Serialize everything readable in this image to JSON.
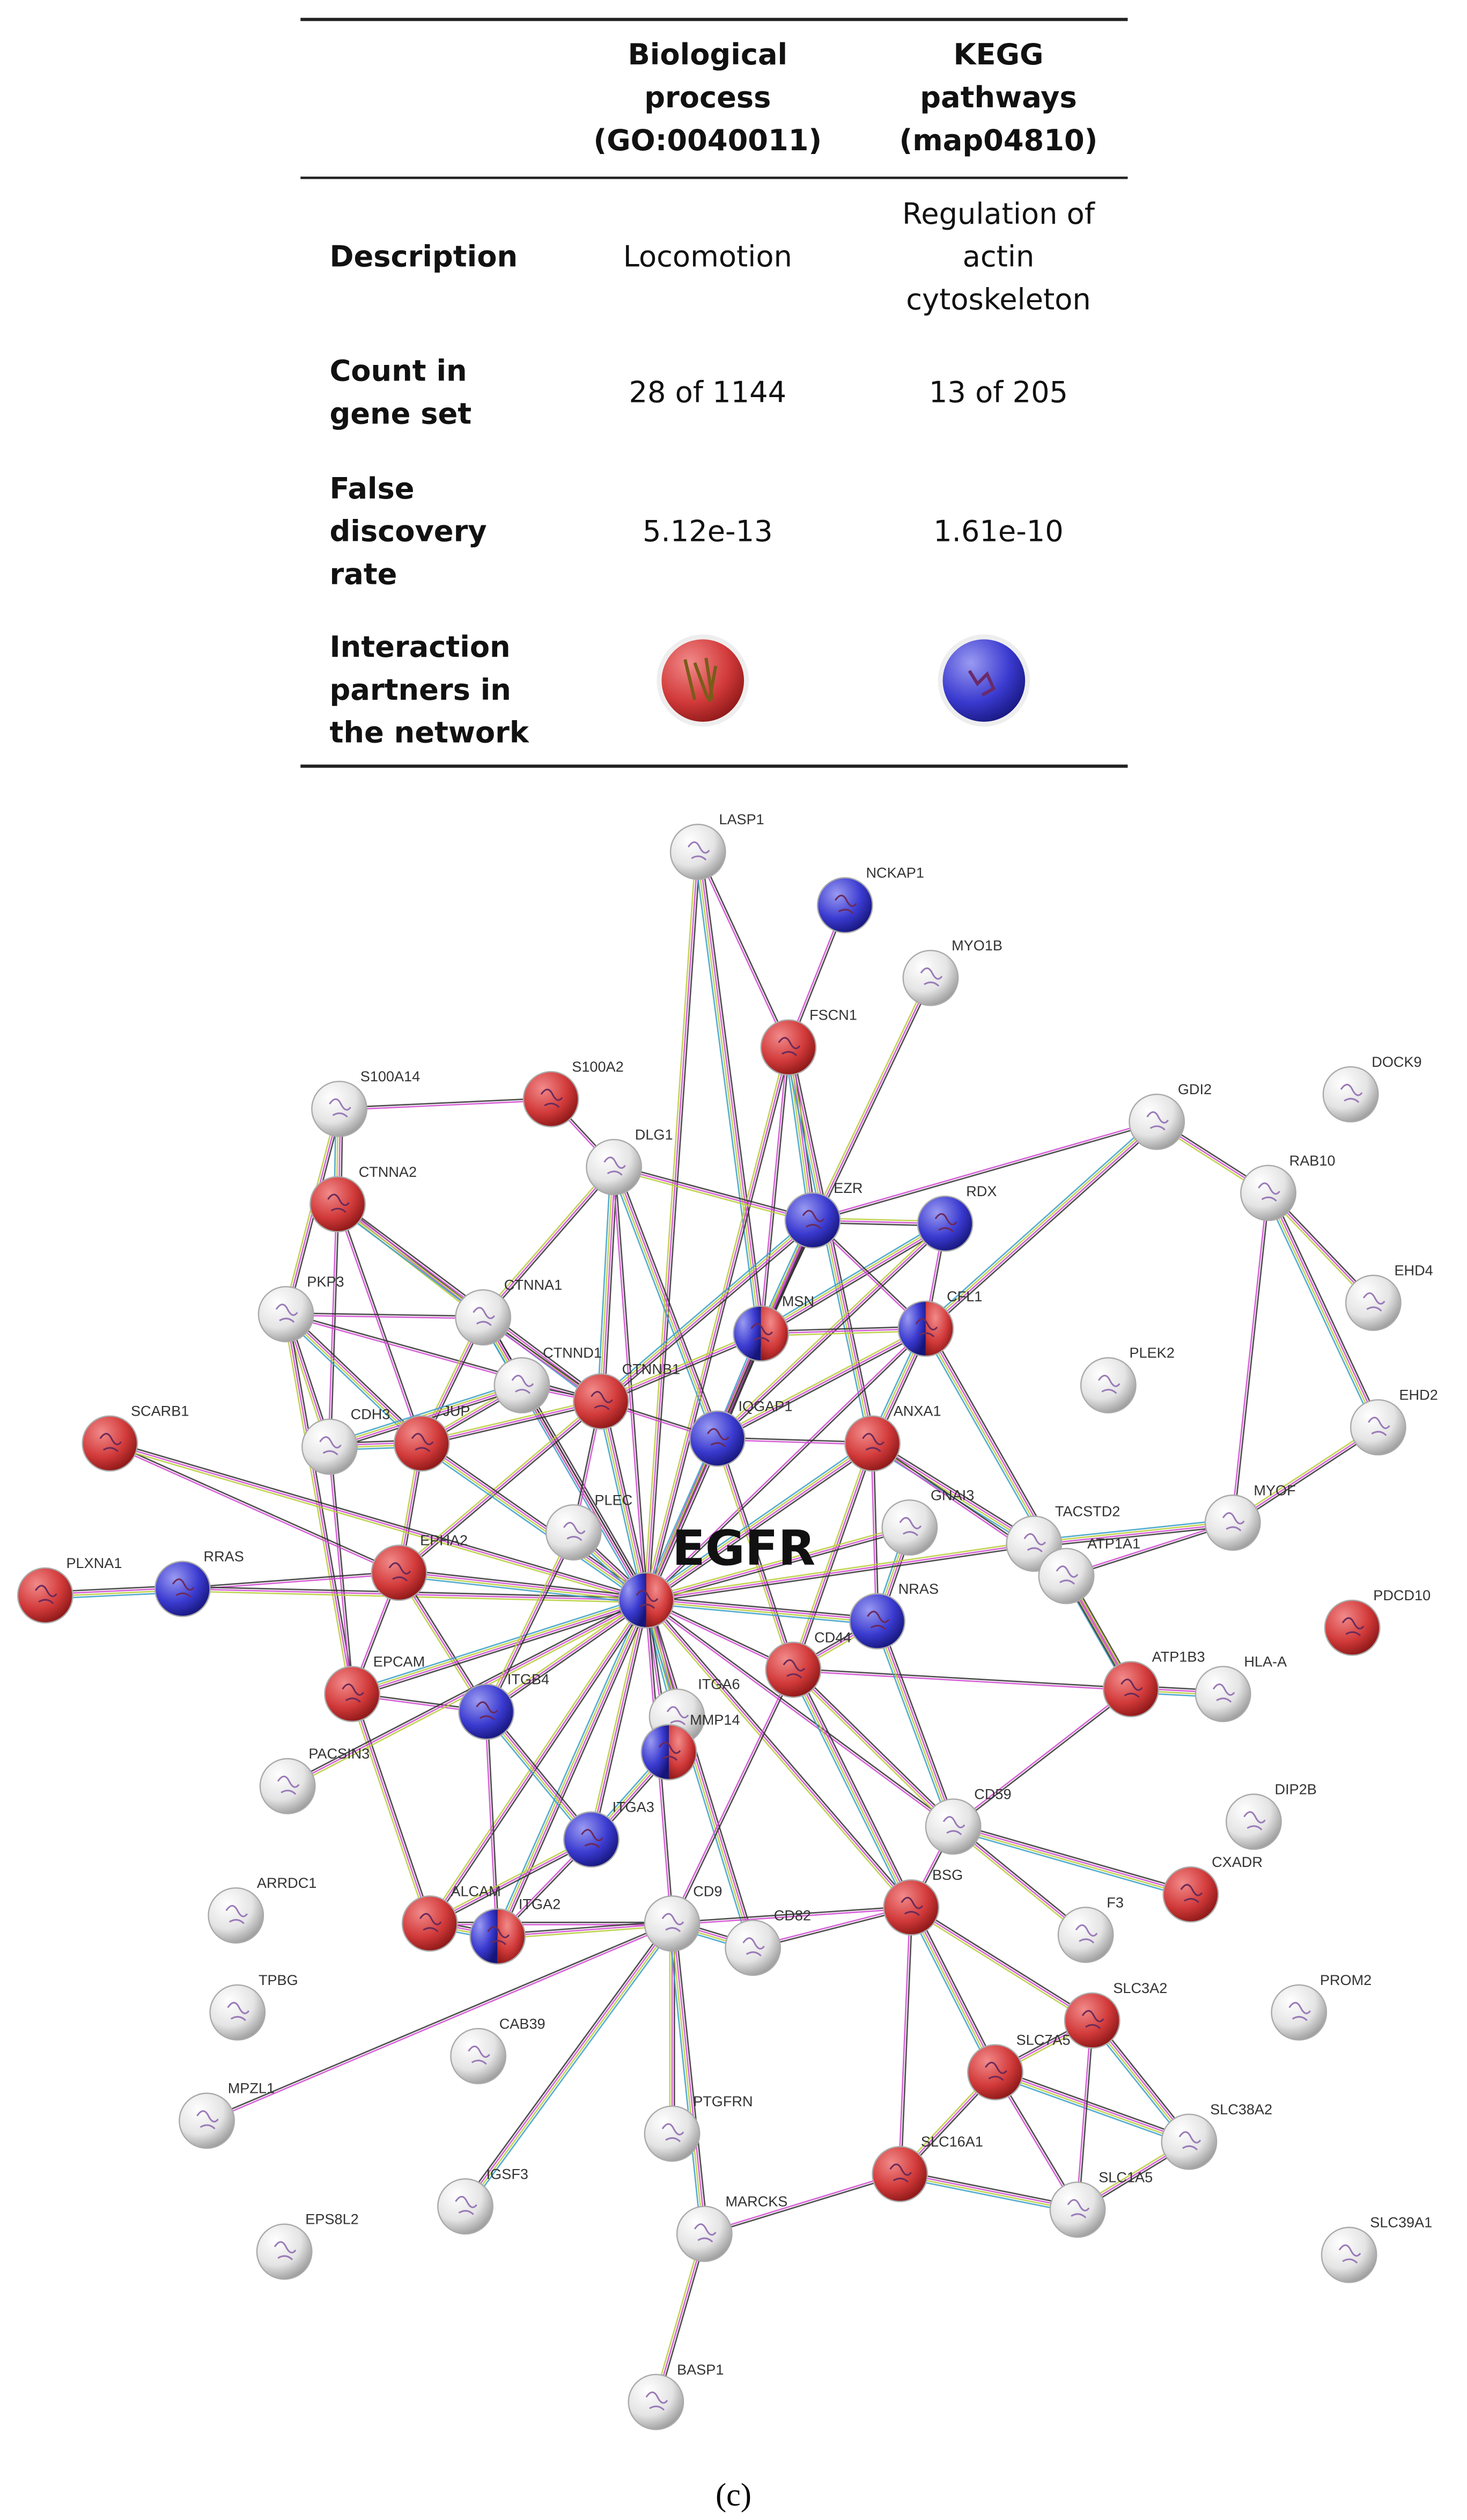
{
  "table": {
    "header": [
      [
        "Biological",
        "process",
        "(GO:0040011)"
      ],
      [
        "KEGG",
        "pathways",
        "(map04810)"
      ]
    ],
    "rows": [
      {
        "label": [
          "Description"
        ],
        "cells": [
          [
            "Locomotion"
          ],
          [
            "Regulation of",
            "actin",
            "cytoskeleton"
          ]
        ]
      },
      {
        "label": [
          "Count in",
          "gene set"
        ],
        "cells": [
          [
            "28 of 1144"
          ],
          [
            "13 of 205"
          ]
        ]
      },
      {
        "label": [
          "False",
          "discovery",
          "rate"
        ],
        "cells": [
          [
            "5.12e-13"
          ],
          [
            "1.61e-10"
          ]
        ]
      },
      {
        "label": [
          "Interaction",
          "partners in",
          "the network"
        ],
        "cells": [
          [],
          []
        ]
      }
    ]
  },
  "network": {
    "nodes": [
      {
        "label": "LASP1",
        "color": "white"
      },
      {
        "label": "NCKAP1",
        "color": "blue"
      },
      {
        "label": "MYO1B",
        "color": "white"
      },
      {
        "label": "FSCN1",
        "color": "red"
      },
      {
        "label": "S100A14",
        "color": "white"
      },
      {
        "label": "S100A2",
        "color": "red"
      },
      {
        "label": "DOCK9",
        "color": "white"
      },
      {
        "label": "GDI2",
        "color": "white"
      },
      {
        "label": "DLG1",
        "color": "white"
      },
      {
        "label": "CTNNA2",
        "color": "red"
      },
      {
        "label": "RAB10",
        "color": "white"
      },
      {
        "label": "EZR",
        "color": "blue"
      },
      {
        "label": "RDX",
        "color": "blue"
      },
      {
        "label": "PKP3",
        "color": "white"
      },
      {
        "label": "CTNNA1",
        "color": "white"
      },
      {
        "label": "MSN",
        "color": "red-blue"
      },
      {
        "label": "CFL1",
        "color": "red-blue"
      },
      {
        "label": "EHD4",
        "color": "white"
      },
      {
        "label": "PLEK2",
        "color": "white"
      },
      {
        "label": "CTNND1",
        "color": "white"
      },
      {
        "label": "CTNNB1",
        "color": "red"
      },
      {
        "label": "SCARB1",
        "color": "red"
      },
      {
        "label": "CDH3",
        "color": "white"
      },
      {
        "label": "JUP",
        "color": "red"
      },
      {
        "label": "IQGAP1",
        "color": "blue"
      },
      {
        "label": "ANXA1",
        "color": "red"
      },
      {
        "label": "EHD2",
        "color": "white"
      },
      {
        "label": "PLEC",
        "color": "white"
      },
      {
        "label": "GNAI3",
        "color": "white"
      },
      {
        "label": "TACSTD2",
        "color": "white"
      },
      {
        "label": "MYOF",
        "color": "white"
      },
      {
        "label": "EGFR",
        "color": "red-blue"
      },
      {
        "label": "PLXNA1",
        "color": "red"
      },
      {
        "label": "RRAS",
        "color": "blue"
      },
      {
        "label": "EPHA2",
        "color": "red"
      },
      {
        "label": "ATP1A1",
        "color": "white"
      },
      {
        "label": "NRAS",
        "color": "blue"
      },
      {
        "label": "PDCD10",
        "color": "red"
      },
      {
        "label": "CD44",
        "color": "red"
      },
      {
        "label": "ATP1B3",
        "color": "red"
      },
      {
        "label": "HLA-A",
        "color": "white"
      },
      {
        "label": "EPCAM",
        "color": "red"
      },
      {
        "label": "ITGB4",
        "color": "blue"
      },
      {
        "label": "ITGA6",
        "color": "white"
      },
      {
        "label": "MMP14",
        "color": "red-blue"
      },
      {
        "label": "PACSIN3",
        "color": "white"
      },
      {
        "label": "CD59",
        "color": "white"
      },
      {
        "label": "DIP2B",
        "color": "white"
      },
      {
        "label": "ITGA3",
        "color": "blue"
      },
      {
        "label": "ARRDC1",
        "color": "white"
      },
      {
        "label": "CXADR",
        "color": "red"
      },
      {
        "label": "ALCAM",
        "color": "red"
      },
      {
        "label": "ITGA2",
        "color": "red-blue"
      },
      {
        "label": "CD9",
        "color": "white"
      },
      {
        "label": "BSG",
        "color": "red"
      },
      {
        "label": "CD82",
        "color": "white"
      },
      {
        "label": "F3",
        "color": "white"
      },
      {
        "label": "TPBG",
        "color": "white"
      },
      {
        "label": "CAB39",
        "color": "white"
      },
      {
        "label": "SLC3A2",
        "color": "red"
      },
      {
        "label": "PROM2",
        "color": "white"
      },
      {
        "label": "SLC7A5",
        "color": "red"
      },
      {
        "label": "MPZL1",
        "color": "white"
      },
      {
        "label": "PTGFRN",
        "color": "white"
      },
      {
        "label": "SLC38A2",
        "color": "white"
      },
      {
        "label": "SLC16A1",
        "color": "red"
      },
      {
        "label": "IGSF3",
        "color": "white"
      },
      {
        "label": "MARCKS",
        "color": "white"
      },
      {
        "label": "SLC1A5",
        "color": "white"
      },
      {
        "label": "SLC39A1",
        "color": "white"
      },
      {
        "label": "EPS8L2",
        "color": "white"
      },
      {
        "label": "BASP1",
        "color": "white"
      }
    ]
  },
  "caption": "(c)"
}
